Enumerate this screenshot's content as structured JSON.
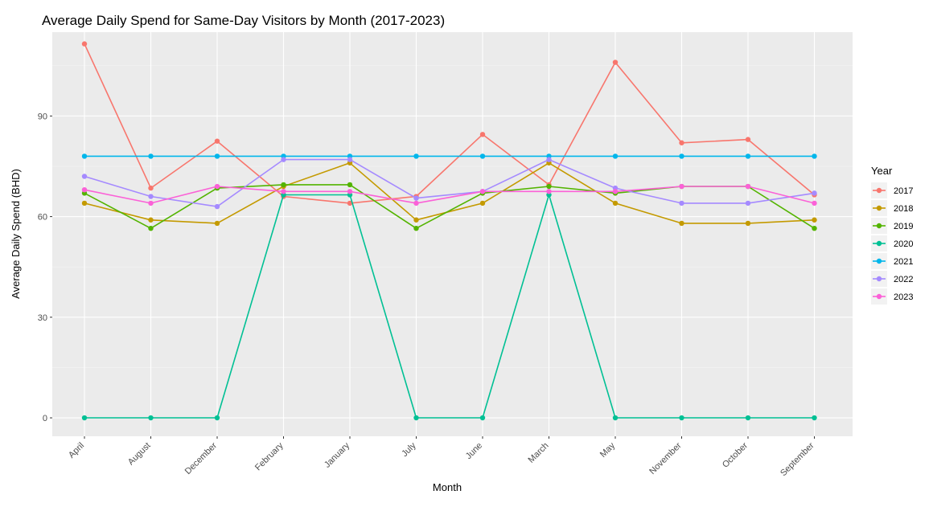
{
  "chart_data": {
    "type": "line",
    "title": "Average Daily Spend for Same-Day Visitors by Month (2017-2023)",
    "xlabel": "Month",
    "ylabel": "Average Daily Spend (BHD)",
    "categories": [
      "April",
      "August",
      "December",
      "February",
      "January",
      "July",
      "June",
      "March",
      "May",
      "November",
      "October",
      "September"
    ],
    "ylim": [
      -5.5,
      115
    ],
    "yticks": [
      0,
      30,
      60,
      90
    ],
    "grid": true,
    "legend": {
      "title": "Year",
      "placement": "right"
    },
    "series": [
      {
        "name": "2017",
        "color": "#F8766D",
        "values": [
          111.5,
          68.5,
          82.5,
          66,
          64,
          66,
          84.5,
          69.5,
          106,
          82,
          83,
          66.5
        ]
      },
      {
        "name": "2018",
        "color": "#C49A00",
        "values": [
          64,
          59,
          58,
          69,
          76,
          59,
          64,
          76,
          64,
          58,
          58,
          59
        ]
      },
      {
        "name": "2019",
        "color": "#53B400",
        "values": [
          67,
          56.5,
          68.5,
          69.5,
          69.5,
          56.5,
          67,
          69,
          67,
          69,
          69,
          56.5
        ]
      },
      {
        "name": "2020",
        "color": "#00C094",
        "values": [
          0,
          0,
          0,
          66.5,
          66.5,
          0,
          0,
          66.5,
          0,
          0,
          0,
          0
        ]
      },
      {
        "name": "2021",
        "color": "#00B6EB",
        "values": [
          78,
          78,
          78,
          78,
          78,
          78,
          78,
          78,
          78,
          78,
          78,
          78
        ]
      },
      {
        "name": "2022",
        "color": "#A58AFF",
        "values": [
          72,
          66,
          63,
          77,
          77,
          65.5,
          67.5,
          77,
          68.5,
          64,
          64,
          67
        ]
      },
      {
        "name": "2023",
        "color": "#FB61D7",
        "values": [
          68,
          64,
          69,
          67.5,
          67.5,
          64,
          67.5,
          67.5,
          67.5,
          69,
          69,
          64
        ]
      }
    ]
  }
}
